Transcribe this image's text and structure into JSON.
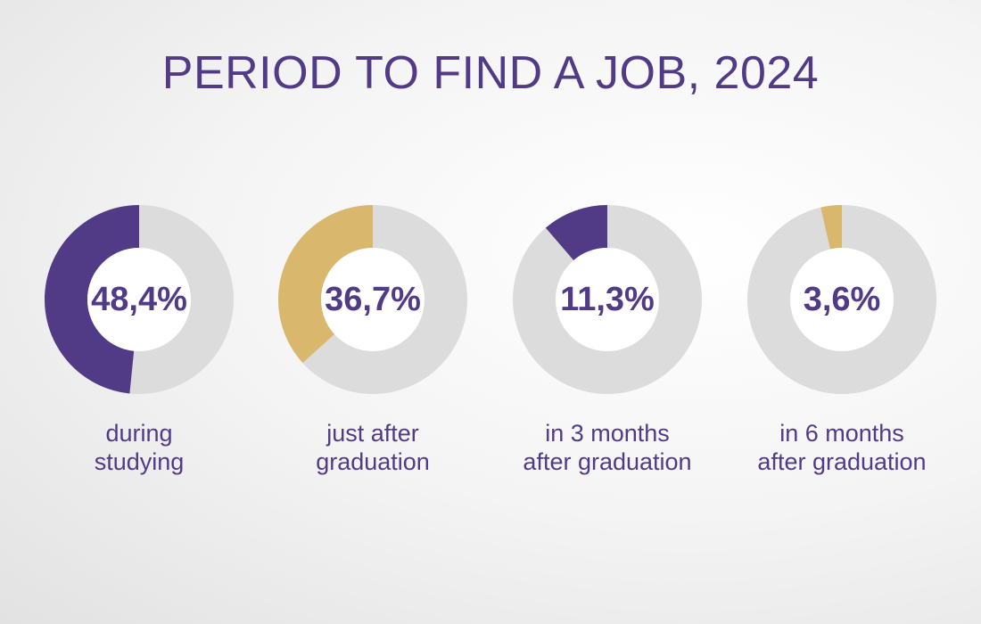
{
  "title": "PERIOD TO FIND A JOB, 2024",
  "chart_data": [
    {
      "type": "donut",
      "categories": [
        "during\nstudying"
      ],
      "values": [
        48.4
      ],
      "value_labels": [
        "48,4%"
      ],
      "color": "#513b86",
      "rest_color": "#dcdcdc"
    },
    {
      "type": "donut",
      "categories": [
        "just after\ngraduation"
      ],
      "values": [
        36.7
      ],
      "value_labels": [
        "36,7%"
      ],
      "color": "#d9b76d",
      "rest_color": "#dcdcdc"
    },
    {
      "type": "donut",
      "categories": [
        "in 3 months\nafter graduation"
      ],
      "values": [
        11.3
      ],
      "value_labels": [
        "11,3%"
      ],
      "color": "#513b86",
      "rest_color": "#dcdcdc"
    },
    {
      "type": "donut",
      "categories": [
        "in 6 months\nafter graduation"
      ],
      "values": [
        3.6
      ],
      "value_labels": [
        "3,6%"
      ],
      "color": "#d9b76d",
      "rest_color": "#dcdcdc"
    }
  ]
}
